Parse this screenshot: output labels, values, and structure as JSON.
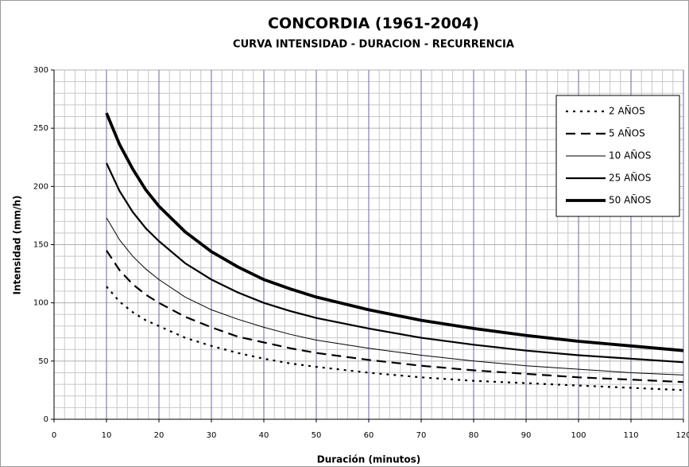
{
  "chart_data": {
    "type": "line",
    "title": "CONCORDIA (1961-2004)",
    "subtitle": "CURVA INTENSIDAD - DURACION - RECURRENCIA",
    "x_label": "Duración (minutos)",
    "y_label": "Intensidad (mm/h)",
    "x": [
      10,
      12.5,
      15,
      17.5,
      20,
      25,
      30,
      35,
      40,
      45,
      50,
      60,
      70,
      80,
      90,
      100,
      110,
      120
    ],
    "series": [
      {
        "name": "2 AÑOS",
        "color": "#000000",
        "dash": "3 6",
        "width": 2.2,
        "values": [
          114,
          101,
          92,
          85,
          80,
          70,
          63,
          57,
          52,
          48,
          45,
          40,
          36,
          33,
          31,
          29,
          27,
          25
        ]
      },
      {
        "name": "5 AÑOS",
        "color": "#000000",
        "dash": "12 7",
        "width": 2.2,
        "values": [
          145,
          128,
          116,
          107,
          100,
          88,
          79,
          71,
          66,
          61,
          57,
          51,
          46,
          42,
          39,
          36,
          34,
          32
        ]
      },
      {
        "name": "10 AÑOS",
        "color": "#000000",
        "dash": "none",
        "width": 1,
        "values": [
          173,
          154,
          140,
          129,
          120,
          105,
          94,
          86,
          79,
          73,
          68,
          61,
          55,
          50,
          46,
          43,
          40,
          38
        ]
      },
      {
        "name": "25 AÑOS",
        "color": "#000000",
        "dash": "none",
        "width": 2.2,
        "values": [
          220,
          196,
          178,
          164,
          153,
          134,
          120,
          109,
          100,
          93,
          87,
          78,
          70,
          64,
          59,
          55,
          52,
          49
        ]
      },
      {
        "name": "50 AÑOS",
        "color": "#000000",
        "dash": "none",
        "width": 3.8,
        "values": [
          263,
          236,
          215,
          197,
          183,
          161,
          144,
          131,
          120,
          112,
          105,
          94,
          85,
          78,
          72,
          67,
          63,
          59
        ]
      }
    ],
    "xlim": [
      0,
      120
    ],
    "xticks": [
      0,
      10,
      20,
      30,
      40,
      50,
      60,
      70,
      80,
      90,
      100,
      110,
      120
    ],
    "ylim": [
      0,
      300
    ],
    "yticks": [
      0,
      50,
      100,
      150,
      200,
      250,
      300
    ],
    "grid": true,
    "legend": "upper right"
  }
}
